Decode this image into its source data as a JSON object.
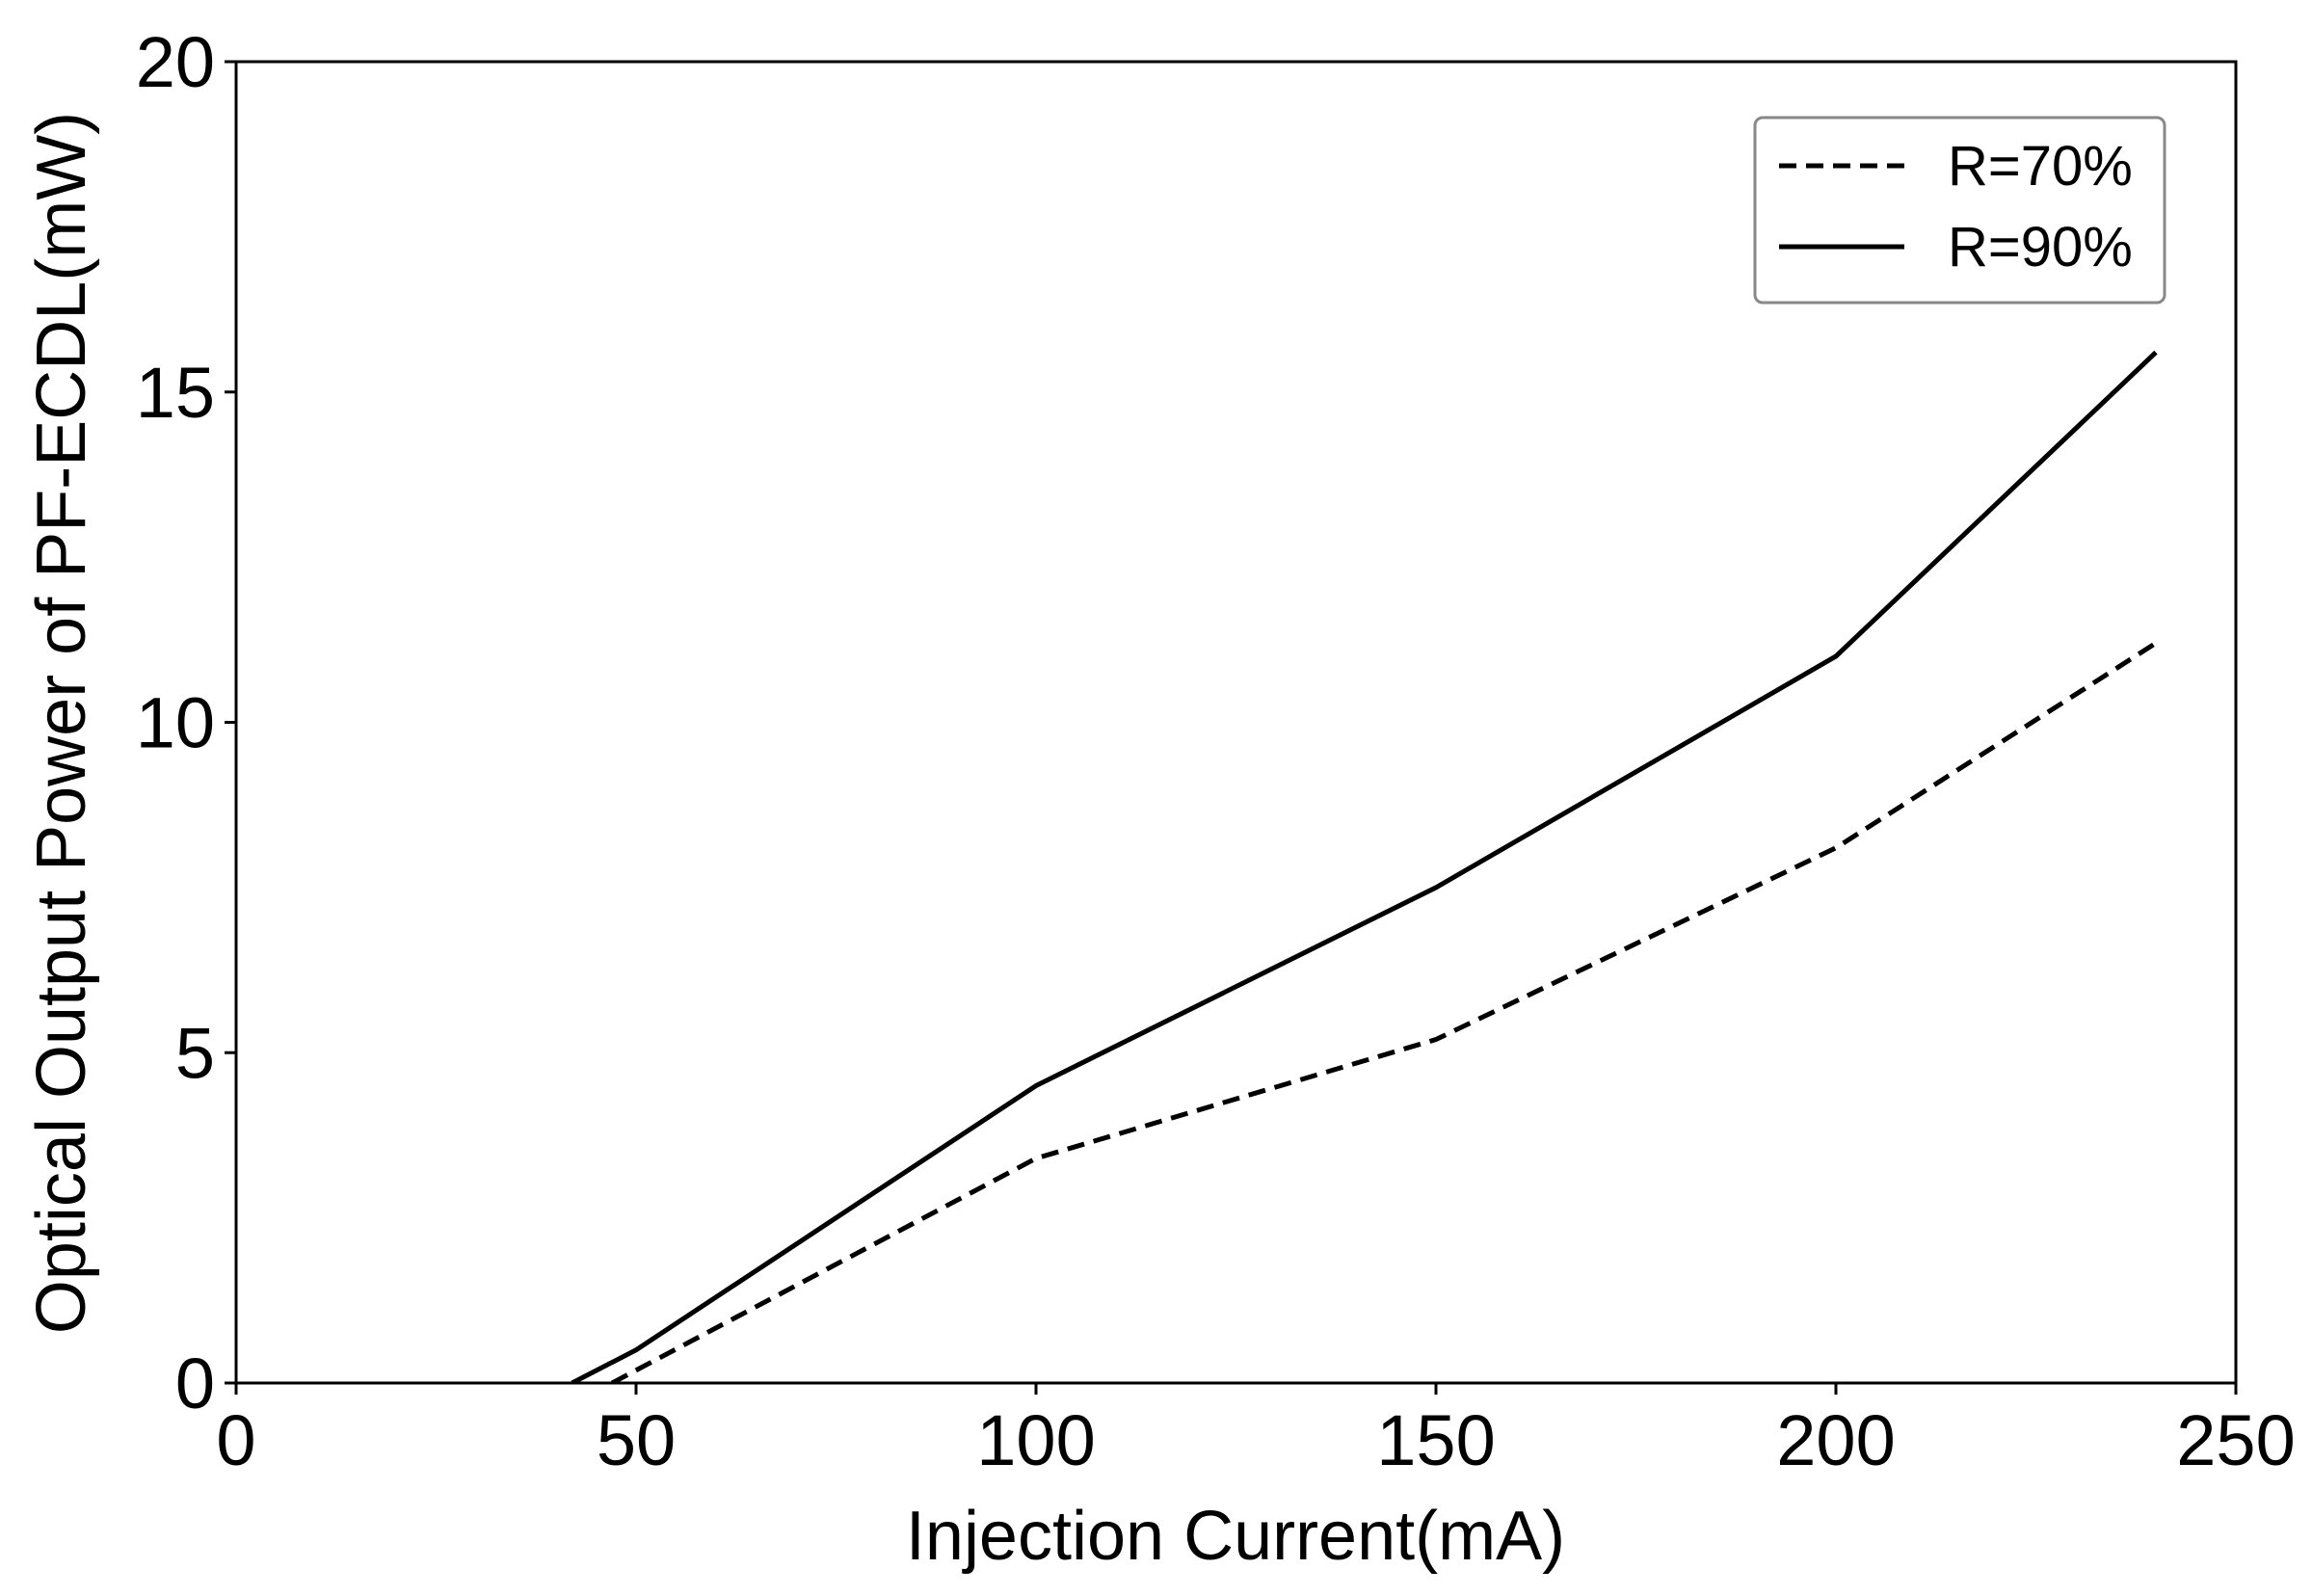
{
  "chart_data": {
    "type": "line",
    "x_label": "Injection Current(mA)",
    "y_label": "Optical Output Power of PF-ECDL(mW)",
    "xlim": [
      0,
      250
    ],
    "ylim": [
      0,
      20
    ],
    "xticks": [
      0,
      50,
      100,
      150,
      200,
      250
    ],
    "yticks": [
      0,
      5,
      10,
      15,
      20
    ],
    "grid": false,
    "legend_position": "upper right",
    "series": [
      {
        "name": "R=70%",
        "color": "#000000",
        "linestyle": "dashed",
        "x": [
          47,
          100,
          150,
          200,
          240
        ],
        "values": [
          0,
          3.4,
          5.2,
          8.1,
          11.2
        ]
      },
      {
        "name": "R=90%",
        "color": "#000000",
        "linestyle": "solid",
        "x": [
          42,
          50,
          100,
          150,
          200,
          240
        ],
        "values": [
          0,
          0.5,
          4.5,
          7.5,
          11,
          15.6
        ]
      }
    ]
  }
}
